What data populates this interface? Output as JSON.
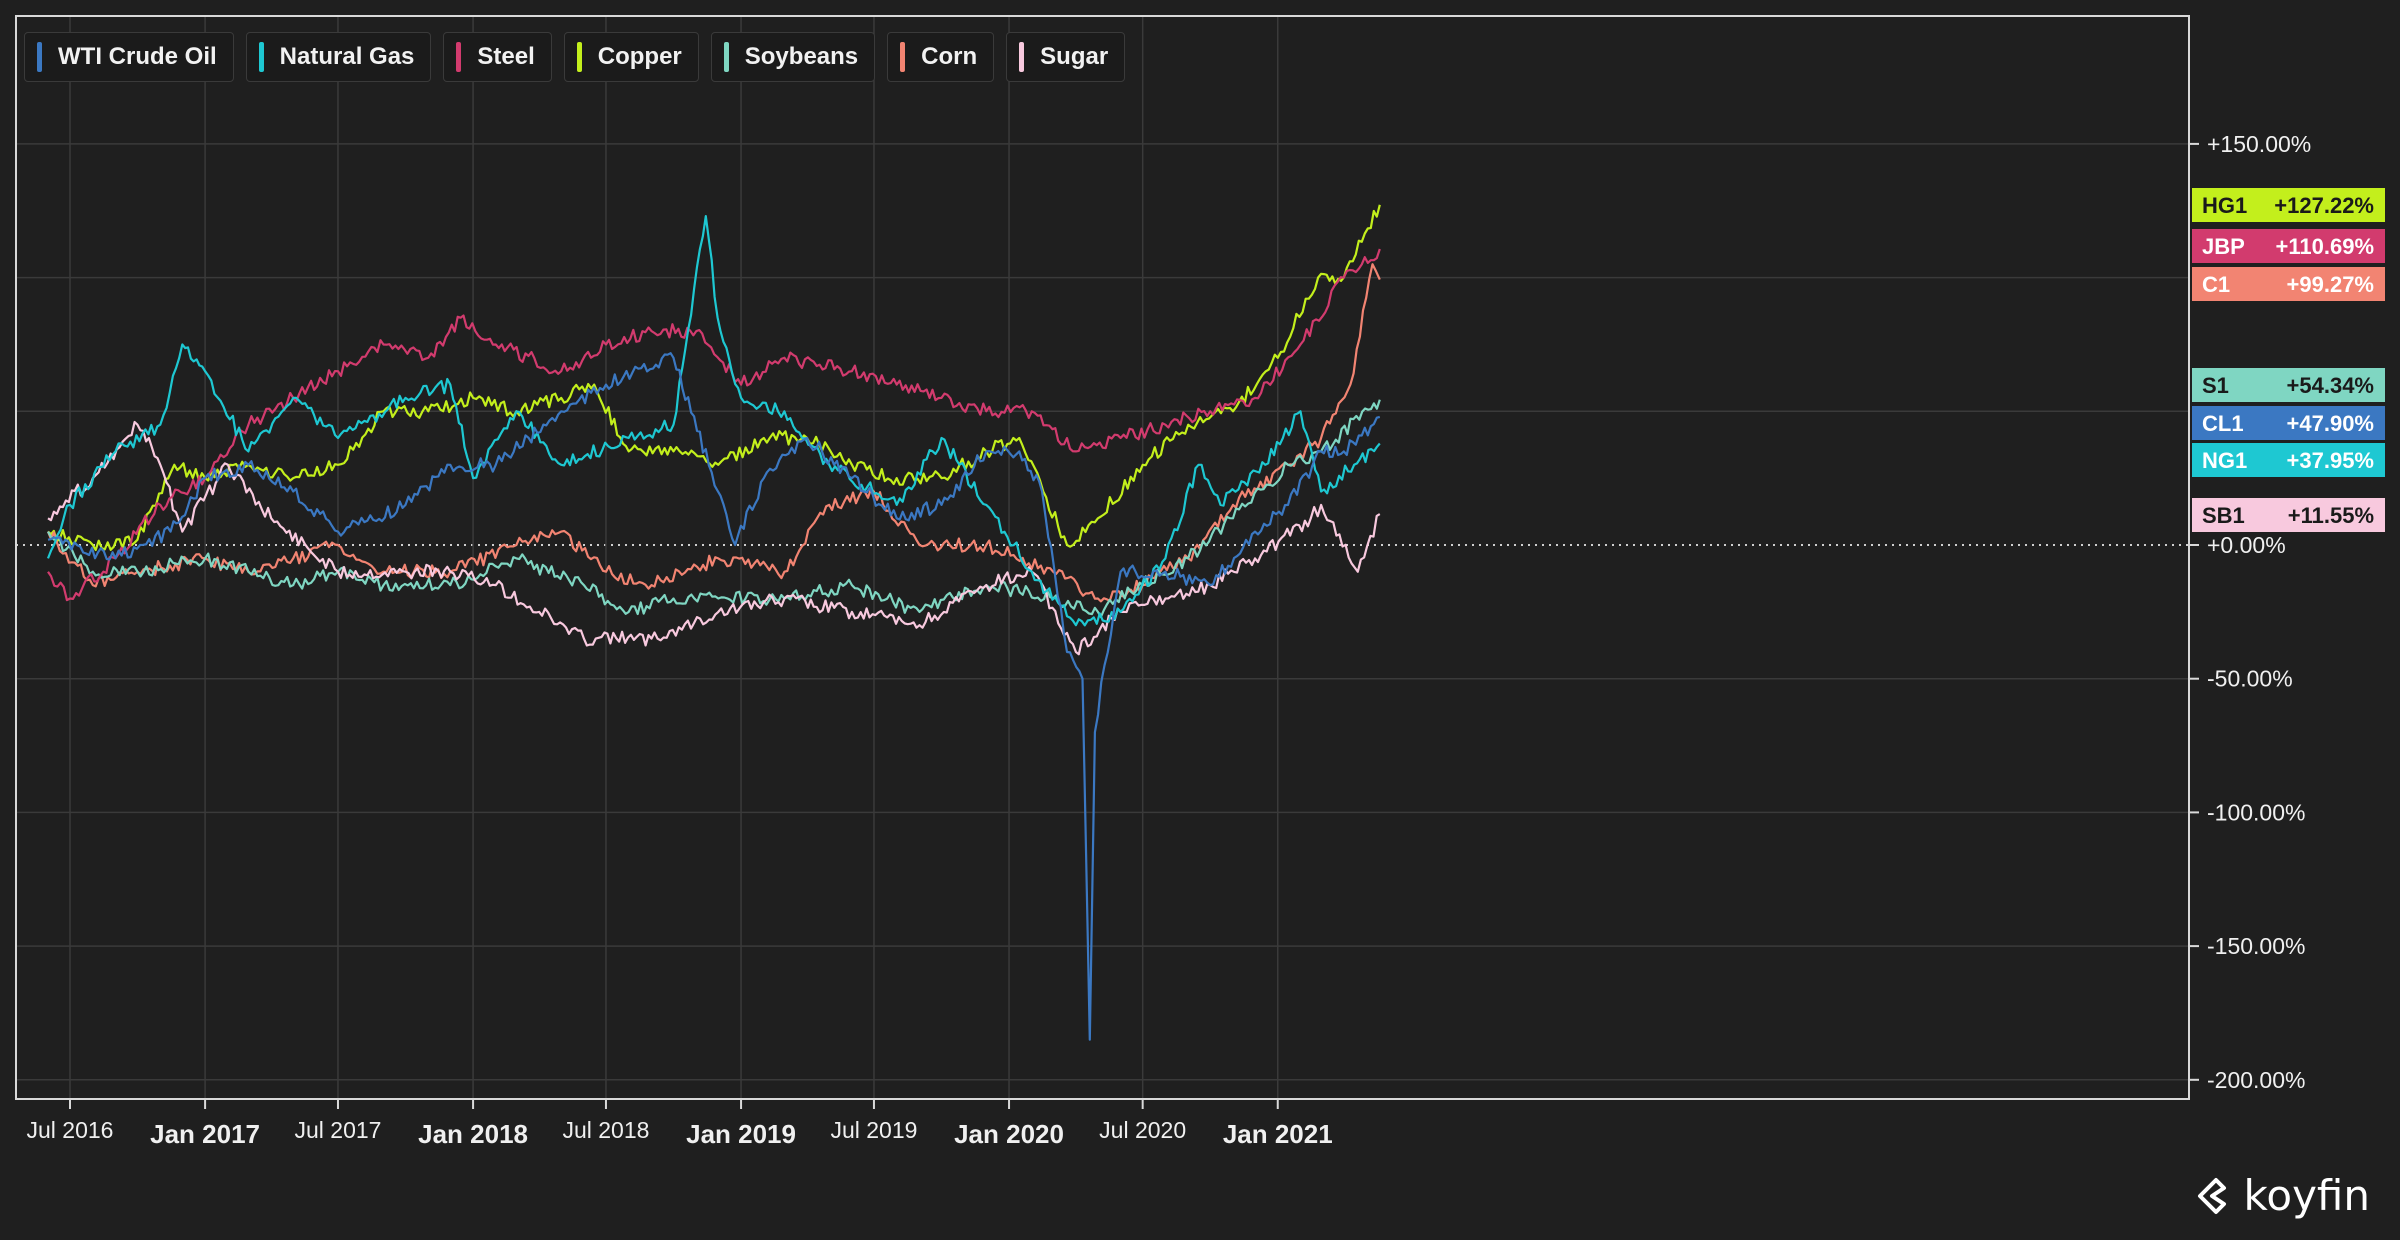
{
  "brand": {
    "name": "koyfin",
    "icon": "koyfin-logo-icon"
  },
  "legend": [
    {
      "label": "WTI Crude Oil",
      "color": "#3b78c2"
    },
    {
      "label": "Natural Gas",
      "color": "#1ec8d2"
    },
    {
      "label": "Steel",
      "color": "#d23b6e"
    },
    {
      "label": "Copper",
      "color": "#c3ef1c"
    },
    {
      "label": "Soybeans",
      "color": "#7fd6c2"
    },
    {
      "label": "Corn",
      "color": "#f28472"
    },
    {
      "label": "Sugar",
      "color": "#f8c9de"
    }
  ],
  "chart_data": {
    "type": "line",
    "y_unit": "%",
    "ylim": [
      -210,
      200
    ],
    "y_ticks": [
      150,
      0,
      -50,
      -100,
      -150,
      -200
    ],
    "y_tick_labels": [
      "+150.00%",
      "+0.00%",
      "-50.00%",
      "-100.00%",
      "-150.00%",
      "-200.00%"
    ],
    "gridlines": true,
    "x_ticks": [
      {
        "date": "2016-07",
        "label": "Jul 2016",
        "major": false
      },
      {
        "date": "2017-01",
        "label": "Jan 2017",
        "major": true
      },
      {
        "date": "2017-07",
        "label": "Jul 2017",
        "major": false
      },
      {
        "date": "2018-01",
        "label": "Jan 2018",
        "major": true
      },
      {
        "date": "2018-07",
        "label": "Jul 2018",
        "major": false
      },
      {
        "date": "2019-01",
        "label": "Jan 2019",
        "major": true
      },
      {
        "date": "2019-07",
        "label": "Jul 2019",
        "major": false
      },
      {
        "date": "2020-01",
        "label": "Jan 2020",
        "major": true
      },
      {
        "date": "2020-07",
        "label": "Jul 2020",
        "major": false
      },
      {
        "date": "2021-01",
        "label": "Jan 2021",
        "major": true
      }
    ],
    "series": [
      {
        "name": "WTI Crude Oil",
        "ticker": "CL1",
        "last_label": "+47.90%",
        "color": "#3b78c2",
        "points": [
          [
            "2016-06-01",
            2
          ],
          [
            "2016-09-01",
            -5
          ],
          [
            "2016-11-15",
            5
          ],
          [
            "2017-01-01",
            25
          ],
          [
            "2017-03-01",
            30
          ],
          [
            "2017-05-01",
            20
          ],
          [
            "2017-07-01",
            5
          ],
          [
            "2017-10-01",
            15
          ],
          [
            "2017-12-01",
            30
          ],
          [
            "2018-02-01",
            30
          ],
          [
            "2018-05-01",
            50
          ],
          [
            "2018-07-01",
            60
          ],
          [
            "2018-10-01",
            70
          ],
          [
            "2018-12-24",
            0
          ],
          [
            "2019-02-01",
            25
          ],
          [
            "2019-04-01",
            40
          ],
          [
            "2019-06-01",
            25
          ],
          [
            "2019-08-01",
            10
          ],
          [
            "2019-10-01",
            15
          ],
          [
            "2019-12-01",
            35
          ],
          [
            "2020-01-15",
            35
          ],
          [
            "2020-02-15",
            20
          ],
          [
            "2020-03-20",
            -40
          ],
          [
            "2020-04-10",
            -50
          ],
          [
            "2020-04-20",
            -185
          ],
          [
            "2020-04-27",
            -70
          ],
          [
            "2020-05-10",
            -45
          ],
          [
            "2020-06-01",
            -10
          ],
          [
            "2020-08-01",
            -10
          ],
          [
            "2020-10-01",
            -15
          ],
          [
            "2020-12-01",
            5
          ],
          [
            "2021-01-15",
            15
          ],
          [
            "2021-03-01",
            35
          ],
          [
            "2021-04-01",
            35
          ],
          [
            "2021-05-20",
            47.9
          ]
        ]
      },
      {
        "name": "Natural Gas",
        "ticker": "NG1",
        "last_label": "+37.95%",
        "color": "#1ec8d2",
        "points": [
          [
            "2016-06-01",
            -5
          ],
          [
            "2016-07-01",
            15
          ],
          [
            "2016-09-01",
            35
          ],
          [
            "2016-11-01",
            45
          ],
          [
            "2016-12-01",
            75
          ],
          [
            "2017-01-01",
            65
          ],
          [
            "2017-03-01",
            35
          ],
          [
            "2017-05-01",
            55
          ],
          [
            "2017-07-01",
            40
          ],
          [
            "2017-10-01",
            55
          ],
          [
            "2017-12-01",
            60
          ],
          [
            "2018-01-01",
            25
          ],
          [
            "2018-03-01",
            50
          ],
          [
            "2018-05-01",
            30
          ],
          [
            "2018-08-01",
            40
          ],
          [
            "2018-10-01",
            45
          ],
          [
            "2018-11-14",
            123
          ],
          [
            "2018-11-30",
            85
          ],
          [
            "2019-01-01",
            55
          ],
          [
            "2019-03-01",
            50
          ],
          [
            "2019-05-01",
            30
          ],
          [
            "2019-08-01",
            15
          ],
          [
            "2019-10-01",
            40
          ],
          [
            "2019-12-01",
            15
          ],
          [
            "2020-02-01",
            -10
          ],
          [
            "2020-04-01",
            -30
          ],
          [
            "2020-06-01",
            -25
          ],
          [
            "2020-08-01",
            -5
          ],
          [
            "2020-09-15",
            30
          ],
          [
            "2020-10-15",
            15
          ],
          [
            "2020-12-15",
            30
          ],
          [
            "2021-02-01",
            50
          ],
          [
            "2021-03-01",
            20
          ],
          [
            "2021-04-15",
            30
          ],
          [
            "2021-05-20",
            37.95
          ]
        ]
      },
      {
        "name": "Steel",
        "ticker": "JBP",
        "last_label": "+110.69%",
        "color": "#d23b6e",
        "points": [
          [
            "2016-06-01",
            -10
          ],
          [
            "2016-07-01",
            -20
          ],
          [
            "2016-09-01",
            -5
          ],
          [
            "2016-11-01",
            15
          ],
          [
            "2017-01-01",
            25
          ],
          [
            "2017-03-01",
            45
          ],
          [
            "2017-05-01",
            55
          ],
          [
            "2017-07-01",
            65
          ],
          [
            "2017-09-01",
            75
          ],
          [
            "2017-11-01",
            70
          ],
          [
            "2017-12-15",
            85
          ],
          [
            "2018-02-01",
            75
          ],
          [
            "2018-05-01",
            65
          ],
          [
            "2018-07-01",
            75
          ],
          [
            "2018-09-01",
            80
          ],
          [
            "2018-11-01",
            80
          ],
          [
            "2019-01-01",
            60
          ],
          [
            "2019-03-01",
            70
          ],
          [
            "2019-06-01",
            65
          ],
          [
            "2019-08-01",
            60
          ],
          [
            "2019-10-01",
            55
          ],
          [
            "2019-12-01",
            50
          ],
          [
            "2020-02-01",
            50
          ],
          [
            "2020-04-01",
            35
          ],
          [
            "2020-06-01",
            40
          ],
          [
            "2020-08-01",
            45
          ],
          [
            "2020-10-01",
            50
          ],
          [
            "2020-12-01",
            55
          ],
          [
            "2021-02-01",
            75
          ],
          [
            "2021-04-01",
            100
          ],
          [
            "2021-05-20",
            110.69
          ]
        ]
      },
      {
        "name": "Copper",
        "ticker": "HG1",
        "last_label": "+127.22%",
        "color": "#c3ef1c",
        "points": [
          [
            "2016-06-01",
            5
          ],
          [
            "2016-08-01",
            0
          ],
          [
            "2016-10-01",
            2
          ],
          [
            "2016-11-20",
            30
          ],
          [
            "2017-01-01",
            25
          ],
          [
            "2017-03-01",
            30
          ],
          [
            "2017-05-01",
            25
          ],
          [
            "2017-07-01",
            30
          ],
          [
            "2017-09-01",
            50
          ],
          [
            "2017-11-01",
            50
          ],
          [
            "2018-01-01",
            55
          ],
          [
            "2018-03-01",
            50
          ],
          [
            "2018-05-01",
            55
          ],
          [
            "2018-06-15",
            60
          ],
          [
            "2018-08-01",
            35
          ],
          [
            "2018-10-01",
            35
          ],
          [
            "2018-12-01",
            30
          ],
          [
            "2019-02-01",
            40
          ],
          [
            "2019-04-01",
            40
          ],
          [
            "2019-06-01",
            30
          ],
          [
            "2019-08-01",
            25
          ],
          [
            "2019-10-01",
            25
          ],
          [
            "2019-12-01",
            35
          ],
          [
            "2020-01-15",
            40
          ],
          [
            "2020-03-20",
            0
          ],
          [
            "2020-05-01",
            10
          ],
          [
            "2020-07-01",
            30
          ],
          [
            "2020-09-01",
            45
          ],
          [
            "2020-11-01",
            50
          ],
          [
            "2021-01-01",
            70
          ],
          [
            "2021-02-25",
            100
          ],
          [
            "2021-04-01",
            100
          ],
          [
            "2021-05-20",
            127.22
          ]
        ]
      },
      {
        "name": "Soybeans",
        "ticker": "S1",
        "last_label": "+54.34%",
        "color": "#7fd6c2",
        "points": [
          [
            "2016-06-01",
            5
          ],
          [
            "2016-08-01",
            -10
          ],
          [
            "2016-10-01",
            -10
          ],
          [
            "2017-01-01",
            -5
          ],
          [
            "2017-03-01",
            -10
          ],
          [
            "2017-05-01",
            -15
          ],
          [
            "2017-07-01",
            -10
          ],
          [
            "2017-09-01",
            -15
          ],
          [
            "2017-12-01",
            -15
          ],
          [
            "2018-03-01",
            -5
          ],
          [
            "2018-06-01",
            -15
          ],
          [
            "2018-08-01",
            -25
          ],
          [
            "2018-10-01",
            -20
          ],
          [
            "2018-12-01",
            -20
          ],
          [
            "2019-03-01",
            -20
          ],
          [
            "2019-06-01",
            -15
          ],
          [
            "2019-09-01",
            -25
          ],
          [
            "2019-12-01",
            -15
          ],
          [
            "2020-03-01",
            -20
          ],
          [
            "2020-05-01",
            -25
          ],
          [
            "2020-07-01",
            -15
          ],
          [
            "2020-09-01",
            -5
          ],
          [
            "2020-11-01",
            10
          ],
          [
            "2021-01-15",
            30
          ],
          [
            "2021-03-01",
            35
          ],
          [
            "2021-05-20",
            54.34
          ]
        ]
      },
      {
        "name": "Corn",
        "ticker": "C1",
        "last_label": "+99.27%",
        "color": "#f28472",
        "points": [
          [
            "2016-06-01",
            5
          ],
          [
            "2016-08-01",
            -15
          ],
          [
            "2016-10-01",
            -10
          ],
          [
            "2017-01-01",
            -5
          ],
          [
            "2017-03-01",
            -10
          ],
          [
            "2017-05-01",
            -5
          ],
          [
            "2017-07-01",
            0
          ],
          [
            "2017-09-01",
            -10
          ],
          [
            "2017-12-01",
            -10
          ],
          [
            "2018-03-01",
            0
          ],
          [
            "2018-05-01",
            5
          ],
          [
            "2018-07-01",
            -10
          ],
          [
            "2018-09-01",
            -15
          ],
          [
            "2018-12-01",
            -5
          ],
          [
            "2019-03-01",
            -10
          ],
          [
            "2019-05-01",
            15
          ],
          [
            "2019-07-01",
            20
          ],
          [
            "2019-09-01",
            0
          ],
          [
            "2019-12-01",
            0
          ],
          [
            "2020-03-01",
            -10
          ],
          [
            "2020-05-01",
            -20
          ],
          [
            "2020-07-01",
            -15
          ],
          [
            "2020-09-01",
            -5
          ],
          [
            "2020-11-01",
            15
          ],
          [
            "2021-01-15",
            30
          ],
          [
            "2021-03-01",
            40
          ],
          [
            "2021-04-10",
            60
          ],
          [
            "2021-05-10",
            105
          ],
          [
            "2021-05-20",
            99.27
          ]
        ]
      },
      {
        "name": "Sugar",
        "ticker": "SB1",
        "last_label": "+11.55%",
        "color": "#f8c9de",
        "points": [
          [
            "2016-06-01",
            10
          ],
          [
            "2016-08-01",
            25
          ],
          [
            "2016-10-01",
            45
          ],
          [
            "2016-11-01",
            30
          ],
          [
            "2016-12-01",
            5
          ],
          [
            "2017-02-01",
            30
          ],
          [
            "2017-04-01",
            10
          ],
          [
            "2017-07-01",
            -10
          ],
          [
            "2017-10-01",
            -10
          ],
          [
            "2017-12-01",
            -10
          ],
          [
            "2018-02-01",
            -15
          ],
          [
            "2018-04-01",
            -25
          ],
          [
            "2018-06-01",
            -35
          ],
          [
            "2018-09-01",
            -35
          ],
          [
            "2018-12-01",
            -25
          ],
          [
            "2019-03-01",
            -20
          ],
          [
            "2019-06-01",
            -25
          ],
          [
            "2019-09-01",
            -30
          ],
          [
            "2019-12-01",
            -15
          ],
          [
            "2020-02-01",
            -10
          ],
          [
            "2020-04-01",
            -40
          ],
          [
            "2020-06-01",
            -25
          ],
          [
            "2020-08-01",
            -20
          ],
          [
            "2020-10-01",
            -15
          ],
          [
            "2020-12-01",
            -5
          ],
          [
            "2021-02-15",
            10
          ],
          [
            "2021-03-01",
            15
          ],
          [
            "2021-04-20",
            -10
          ],
          [
            "2021-05-20",
            11.55
          ]
        ]
      }
    ]
  }
}
